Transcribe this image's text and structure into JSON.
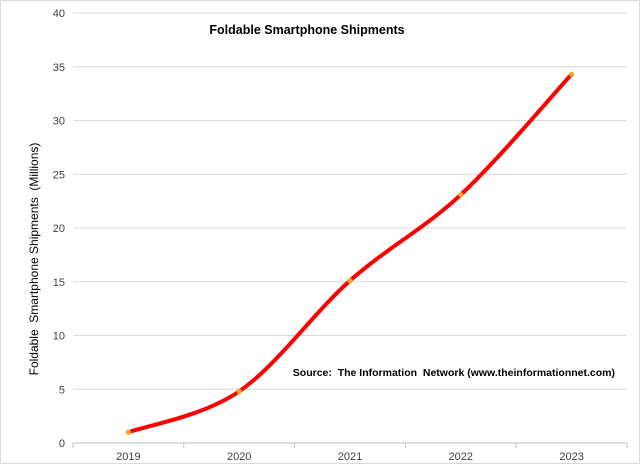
{
  "chart_data": {
    "type": "line",
    "title": "Foldable Smartphone Shipments",
    "xlabel": "",
    "ylabel": "Foldable  Smartphone Shipments  (Millions)",
    "annotation": "Source:  The Information  Network (www.theinformationnet.com)",
    "categories": [
      "2019",
      "2020",
      "2021",
      "2022",
      "2023"
    ],
    "series": [
      {
        "values": [
          1,
          4.8,
          15.1,
          23.1,
          34.3
        ]
      }
    ],
    "ylim": [
      0,
      40
    ],
    "yticks": [
      "0",
      "5",
      "10",
      "15",
      "20",
      "25",
      "30",
      "35",
      "40"
    ],
    "grid": true,
    "line_color": "#ff0000",
    "marker_color": "#f5a623",
    "grid_color": "#d9d9d9",
    "smooth": true
  }
}
